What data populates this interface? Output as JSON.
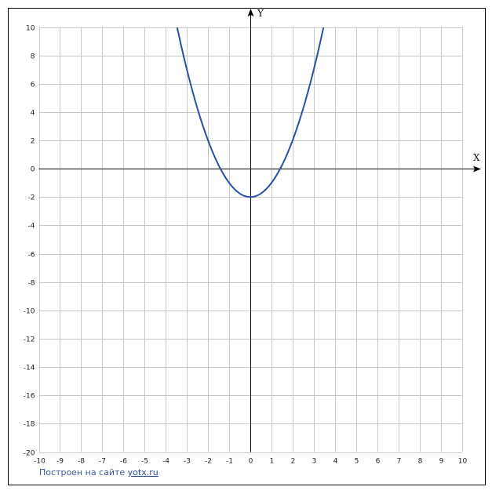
{
  "chart_data": {
    "type": "line",
    "title": "",
    "xlabel": "X",
    "ylabel": "Y",
    "xlim": [
      -10,
      10
    ],
    "ylim": [
      -20,
      10
    ],
    "x_ticks": [
      -10,
      -9,
      -8,
      -7,
      -6,
      -5,
      -4,
      -3,
      -2,
      -1,
      0,
      1,
      2,
      3,
      4,
      5,
      6,
      7,
      8,
      9,
      10
    ],
    "y_ticks": [
      10,
      8,
      6,
      4,
      2,
      0,
      -2,
      -4,
      -6,
      -8,
      -10,
      -12,
      -14,
      -16,
      -18,
      -20
    ],
    "grid": true,
    "series": [
      {
        "color": "#2b4fa8",
        "x": [
          -3.46,
          -3.25,
          -3,
          -2.75,
          -2.5,
          -2.25,
          -2,
          -1.75,
          -1.5,
          -1.25,
          -1,
          -0.75,
          -0.5,
          -0.25,
          0,
          0.25,
          0.5,
          0.75,
          1,
          1.25,
          1.5,
          1.75,
          2,
          2.25,
          2.5,
          2.75,
          3,
          3.25,
          3.46
        ],
        "y": [
          9.97,
          8.5625,
          7,
          5.5625,
          4.25,
          3.0625,
          2,
          1.0625,
          0.25,
          -0.4375,
          -1,
          -1.4375,
          -1.75,
          -1.9375,
          -2,
          -1.9375,
          -1.75,
          -1.4375,
          -1,
          -0.4375,
          0.25,
          1.0625,
          2,
          3.0625,
          4.25,
          5.5625,
          7,
          8.5625,
          9.97
        ]
      }
    ]
  },
  "footer": {
    "text": "Построен на сайте ",
    "link": "yotx.ru"
  }
}
